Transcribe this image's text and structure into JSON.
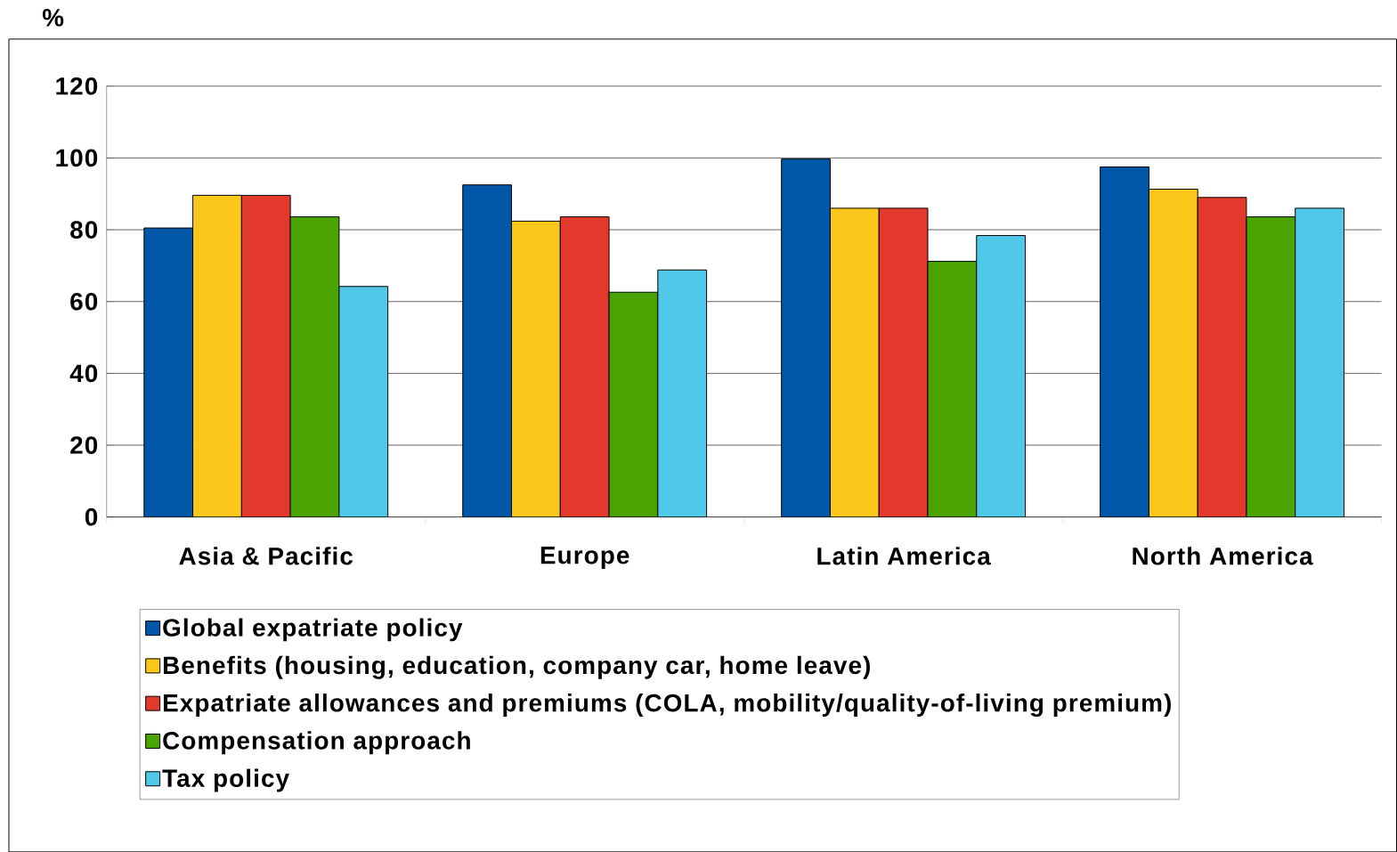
{
  "chart_data": {
    "type": "bar",
    "ylabel": "%",
    "categories": [
      "Asia & Pacific",
      "Europe",
      "Latin America",
      "North America"
    ],
    "series": [
      {
        "name": "Global expatriate policy",
        "color": "#0056a7",
        "values": [
          80.5,
          92.5,
          99.7,
          97.5
        ]
      },
      {
        "name": "Benefits (housing, education, company car, home leave)",
        "color": "#fcc71b",
        "values": [
          89.6,
          82.4,
          86,
          91.3
        ]
      },
      {
        "name": "Expatriate allowances and premiums (COLA, mobility/quality-of-living premium)",
        "color": "#e3392c",
        "values": [
          89.6,
          83.6,
          86,
          89
        ]
      },
      {
        "name": "Compensation approach",
        "color": "#4aa300",
        "values": [
          83.6,
          62.6,
          71.2,
          83.6
        ]
      },
      {
        "name": "Tax policy",
        "color": "#50c8ea",
        "values": [
          64.2,
          68.8,
          78.4,
          86
        ]
      }
    ],
    "ylim": [
      0,
      120
    ],
    "yticks": [
      0,
      20,
      40,
      60,
      80,
      100,
      120
    ],
    "grid": "y",
    "legend": "bottom"
  }
}
